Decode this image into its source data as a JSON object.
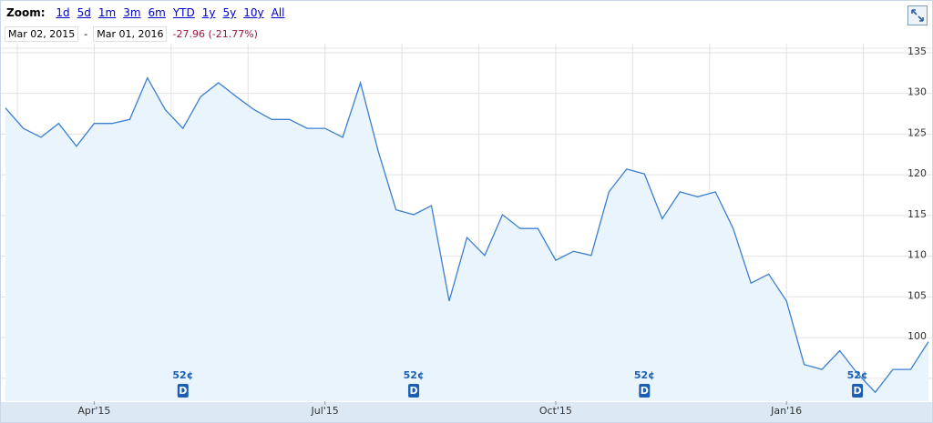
{
  "toolbar": {
    "zoom_label": "Zoom:",
    "zoom_links": [
      "1d",
      "5d",
      "1m",
      "3m",
      "6m",
      "YTD",
      "1y",
      "5y",
      "10y",
      "All"
    ],
    "start_date": "Mar 02, 2015",
    "separator": "-",
    "end_date": "Mar 01, 2016",
    "change": "-27.96 (-21.77%)"
  },
  "chart_data": {
    "type": "line",
    "categories": [
      null,
      null,
      null,
      null,
      null,
      "Apr'15",
      null,
      null,
      null,
      null,
      null,
      null,
      null,
      null,
      null,
      null,
      null,
      null,
      "Jul'15",
      null,
      null,
      null,
      null,
      null,
      null,
      null,
      null,
      null,
      null,
      null,
      null,
      "Oct'15",
      null,
      null,
      null,
      null,
      null,
      null,
      null,
      null,
      null,
      null,
      null,
      null,
      "Jan'16",
      null,
      null,
      null,
      null,
      null,
      null,
      null,
      null
    ],
    "series": [
      {
        "color": "#3d7fd0",
        "values": [
          128.2,
          125.7,
          124.6,
          126.3,
          123.5,
          126.3,
          126.3,
          126.8,
          131.9,
          128,
          125.7,
          129.6,
          131.3,
          129.6,
          128,
          126.8,
          126.8,
          125.7,
          125.7,
          124.6,
          131.3,
          122.9,
          115.7,
          115.1,
          116.2,
          104.5,
          112.3,
          110.1,
          115.1,
          113.4,
          113.4,
          109.5,
          110.6,
          110.1,
          117.9,
          120.7,
          120.1,
          114.6,
          117.9,
          117.3,
          117.9,
          113.4,
          106.7,
          107.8,
          104.5,
          96.7,
          96.1,
          98.4,
          95.6,
          93.3,
          96.1,
          96.1,
          99.5
        ]
      }
    ],
    "ylim": [
      92.2,
      136.1
    ],
    "yticks": [
      95,
      100,
      105,
      110,
      115,
      120,
      125,
      130,
      135
    ],
    "grid": true,
    "annotations": [
      {
        "text": "52¢",
        "icon": "D"
      },
      {
        "text": "52¢",
        "icon": "D"
      },
      {
        "text": "52¢",
        "icon": "D"
      },
      {
        "text": "52¢",
        "icon": "D"
      }
    ]
  }
}
